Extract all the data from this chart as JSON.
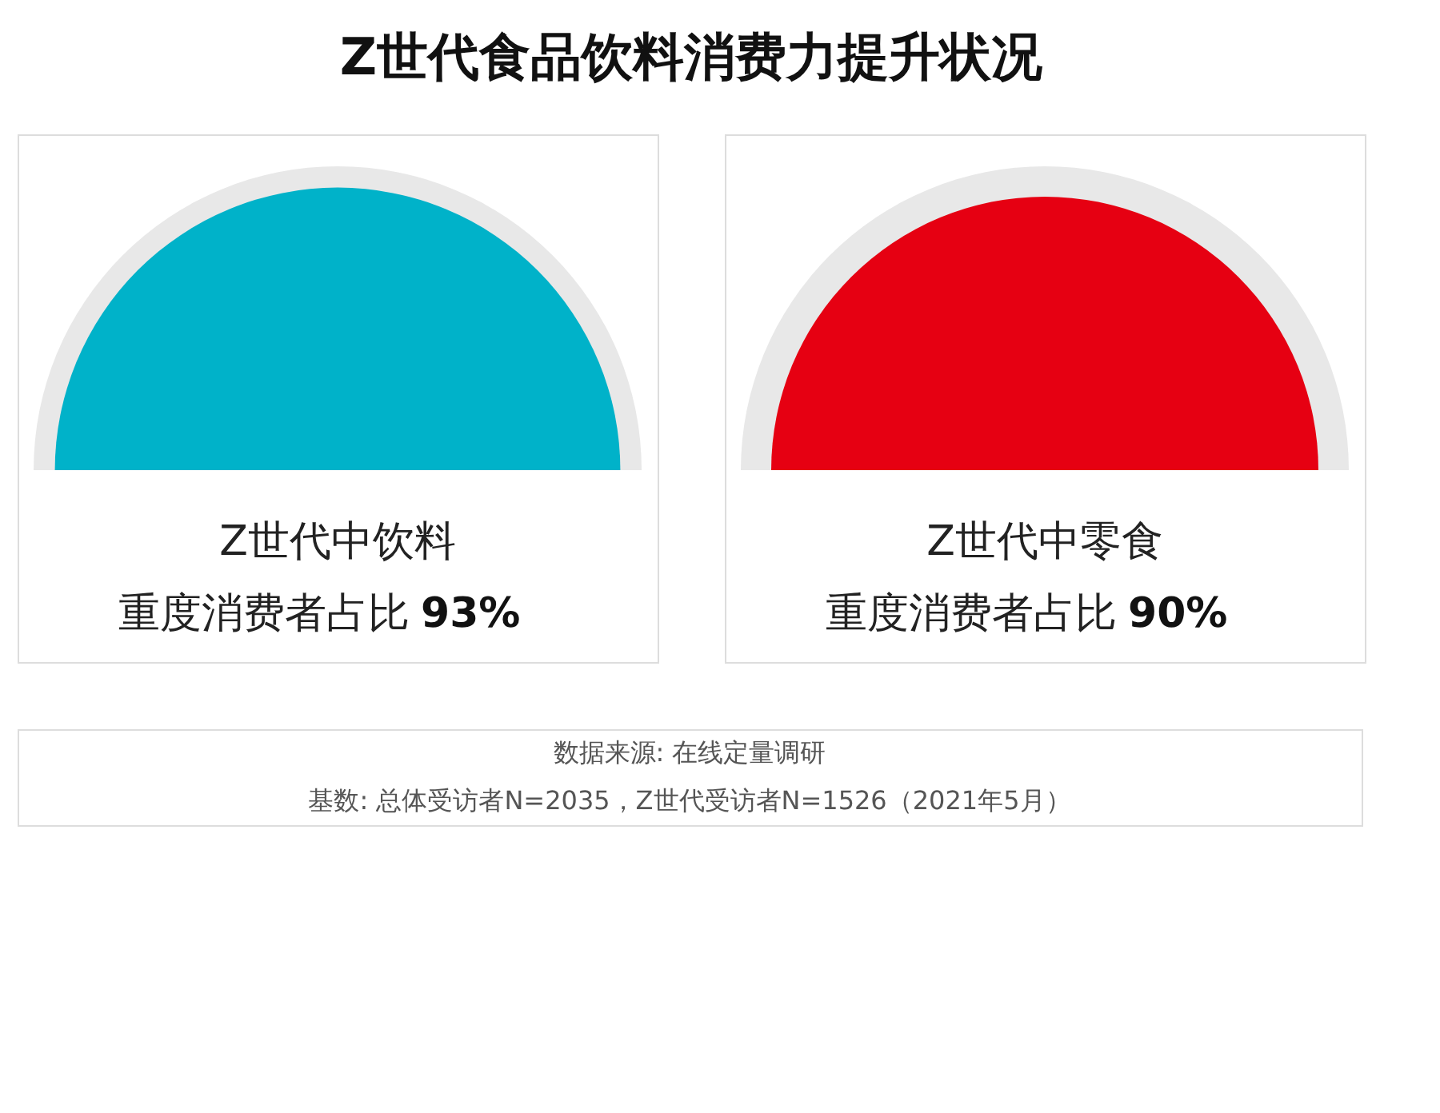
{
  "chart_data": [
    {
      "type": "other",
      "title": "Z世代食品饮料消费力提升状况",
      "categories": [
        "Z世代中饮料重度消费者占比"
      ],
      "values": [
        93
      ],
      "value_labels": [
        "93%"
      ],
      "colors": [
        "#00b2c9"
      ]
    },
    {
      "type": "other",
      "categories": [
        "Z世代中零食重度消费者占比"
      ],
      "values": [
        90
      ],
      "value_labels": [
        "90%"
      ],
      "colors": [
        "#e60012"
      ],
      "annotations": [
        "数据来源: 在线定量调研",
        "基数: 总体受访者N=2035，Z世代受访者N=1526（2021年5月）"
      ]
    }
  ]
}
